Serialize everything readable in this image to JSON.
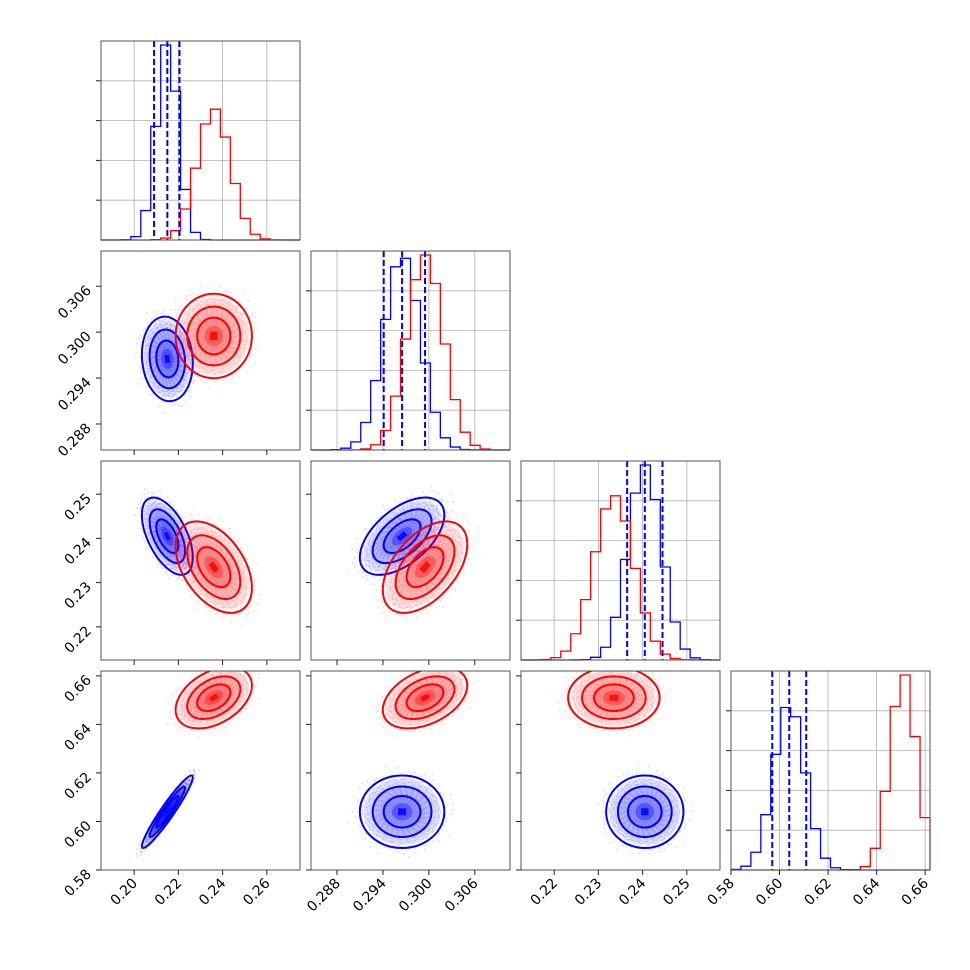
{
  "chart_data": {
    "type": "corner",
    "title": "",
    "parameters": [
      {
        "range": [
          0.185,
          0.275
        ],
        "ticks": [
          "0.20",
          "0.22",
          "0.24",
          "0.26"
        ],
        "tick_values": [
          0.2,
          0.22,
          0.24,
          0.26
        ]
      },
      {
        "range": [
          0.2846,
          0.3106
        ],
        "ticks": [
          "0.288",
          "0.294",
          "0.300",
          "0.306"
        ],
        "tick_values": [
          0.288,
          0.294,
          0.3,
          0.306
        ]
      },
      {
        "range": [
          0.2125,
          0.2575
        ],
        "ticks": [
          "0.22",
          "0.23",
          "0.24",
          "0.25"
        ],
        "tick_values": [
          0.22,
          0.23,
          0.24,
          0.25
        ]
      },
      {
        "range": [
          0.58,
          0.662
        ],
        "ticks": [
          "0.58",
          "0.60",
          "0.62",
          "0.64",
          "0.66"
        ],
        "tick_values": [
          0.58,
          0.6,
          0.62,
          0.64,
          0.66
        ]
      }
    ],
    "series": [
      {
        "color": "#0000ff",
        "means": [
          0.215,
          0.2965,
          0.2405,
          0.604
        ],
        "sigmas": [
          0.005,
          0.0024,
          0.0038,
          0.0065
        ],
        "correlations": {
          "0-1": -0.1,
          "0-2": -0.55,
          "1-2": 0.55,
          "0-3": 0.95,
          "1-3": 0.0,
          "2-3": 0.0
        },
        "quantile_lines": {
          "0": [
            0.209,
            0.215,
            0.2205
          ],
          "1": [
            0.2941,
            0.2965,
            0.2995
          ],
          "2": [
            0.2365,
            0.2405,
            0.2445
          ],
          "3": [
            0.597,
            0.604,
            0.611
          ]
        }
      },
      {
        "color": "#ff0000",
        "means": [
          0.236,
          0.2995,
          0.2335,
          0.651
        ],
        "sigmas": [
          0.0075,
          0.0024,
          0.0045,
          0.0055
        ],
        "correlations": {
          "0-1": 0.0,
          "0-2": -0.45,
          "1-2": 0.5,
          "0-3": 0.4,
          "1-3": 0.4,
          "2-3": 0.0
        },
        "quantile_lines": {}
      }
    ]
  }
}
